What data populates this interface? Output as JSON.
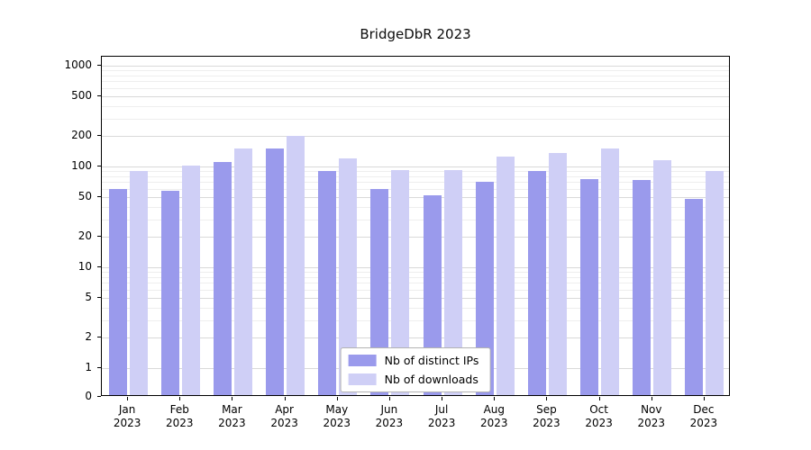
{
  "chart_data": {
    "type": "bar",
    "title": "BridgeDbR 2023",
    "xlabel": "",
    "ylabel": "",
    "yscale": "log",
    "ylim": [
      0,
      1000
    ],
    "yticks": [
      0,
      1,
      2,
      5,
      10,
      20,
      50,
      100,
      200,
      500,
      1000
    ],
    "grid": true,
    "legend_position": "lower-center",
    "categories": [
      "Jan 2023",
      "Feb 2023",
      "Mar 2023",
      "Apr 2023",
      "May 2023",
      "Jun 2023",
      "Jul 2023",
      "Aug 2023",
      "Sep 2023",
      "Oct 2023",
      "Nov 2023",
      "Dec 2023"
    ],
    "series": [
      {
        "name": "Nb of distinct IPs",
        "color": "#9a9aec",
        "values": [
          60,
          57,
          110,
          150,
          90,
          60,
          52,
          70,
          90,
          75,
          73,
          48
        ]
      },
      {
        "name": "Nb of downloads",
        "color": "#cfcff6",
        "values": [
          90,
          102,
          150,
          200,
          120,
          93,
          93,
          125,
          135,
          150,
          115,
          90
        ]
      }
    ]
  }
}
